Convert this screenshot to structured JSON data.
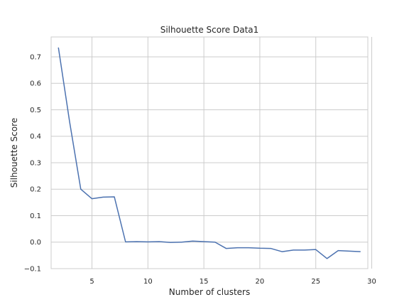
{
  "chart_data": {
    "type": "line",
    "title": "Silhouette Score Data1",
    "xlabel": "Number of clusters",
    "ylabel": "Silhouette Score",
    "xlim": [
      1.35,
      29.65
    ],
    "ylim": [
      -0.1,
      0.775
    ],
    "xticks": [
      5,
      10,
      15,
      20,
      25,
      30
    ],
    "yticks": [
      -0.1,
      0.0,
      0.1,
      0.2,
      0.3,
      0.4,
      0.5,
      0.6,
      0.7
    ],
    "xtick_labels": [
      "5",
      "10",
      "15",
      "20",
      "25",
      "30"
    ],
    "ytick_labels": [
      "−0.1",
      "0.0",
      "0.1",
      "0.2",
      "0.3",
      "0.4",
      "0.5",
      "0.6",
      "0.7"
    ],
    "grid": true,
    "legend": "none",
    "series": [
      {
        "color": "#4c72b0",
        "x": [
          2,
          3,
          4,
          5,
          6,
          7,
          8,
          9,
          10,
          11,
          12,
          13,
          14,
          15,
          16,
          17,
          18,
          19,
          20,
          21,
          22,
          23,
          24,
          25,
          26,
          27,
          28,
          29
        ],
        "y": [
          0.735,
          0.455,
          0.2,
          0.164,
          0.17,
          0.171,
          0.001,
          0.002,
          0.001,
          0.002,
          -0.001,
          0.0,
          0.004,
          0.002,
          0.0,
          -0.024,
          -0.021,
          -0.021,
          -0.023,
          -0.024,
          -0.036,
          -0.03,
          -0.03,
          -0.028,
          -0.062,
          -0.032,
          -0.034,
          -0.036
        ]
      }
    ]
  }
}
